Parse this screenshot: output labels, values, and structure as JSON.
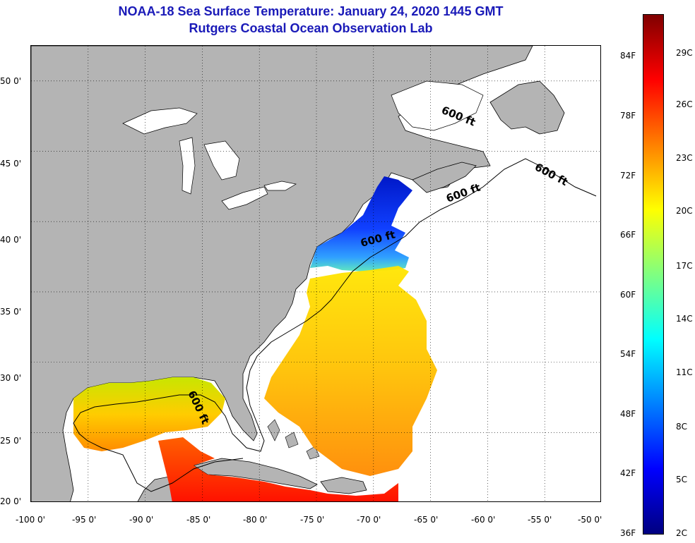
{
  "header": {
    "title_line1": "NOAA-18 Sea Surface Temperature:  January 24, 2020 1445 GMT",
    "title_line2": "Rutgers Coastal Ocean Observation Lab"
  },
  "map": {
    "lon_range": [
      -100,
      -50
    ],
    "lat_range": [
      20,
      52.5
    ],
    "x_ticks": [
      "-100 0'",
      "-95 0'",
      "-90 0'",
      "-85 0'",
      "-80 0'",
      "-75 0'",
      "-70 0'",
      "-65 0'",
      "-60 0'",
      "-55 0'",
      "-50 0'"
    ],
    "y_ticks": [
      "50 0'",
      "45 0'",
      "40 0'",
      "35 0'",
      "30 0'",
      "25 0'",
      "20 0'"
    ],
    "contour_labels": [
      "600 ft",
      "600 ft",
      "600 ft",
      "600 ft",
      "600 ft"
    ],
    "grid": "dotted",
    "land_color": "#b4b4b4",
    "water_no_data_color": "#ffffff"
  },
  "colorbar": {
    "fahrenheit_labels": [
      "84F",
      "78F",
      "72F",
      "66F",
      "60F",
      "54F",
      "48F",
      "42F",
      "36F"
    ],
    "celsius_labels": [
      "29C",
      "26C",
      "23C",
      "20C",
      "17C",
      "14C",
      "11C",
      "8C",
      "5C",
      "2C"
    ],
    "colors": [
      "#000080",
      "#0000ff",
      "#0080ff",
      "#00ffff",
      "#80ff80",
      "#ffff00",
      "#ff8000",
      "#ff0000",
      "#800000"
    ]
  }
}
